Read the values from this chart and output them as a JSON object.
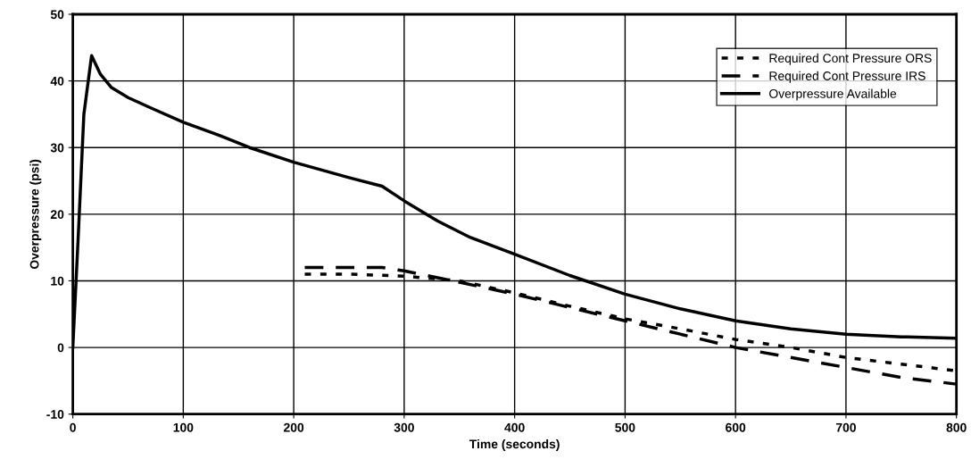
{
  "chart_data": {
    "type": "line",
    "xlabel": "Time (seconds)",
    "ylabel": "Overpressure (psi)",
    "xlim": [
      0,
      800
    ],
    "xticks": [
      0,
      100,
      200,
      300,
      400,
      500,
      600,
      700,
      800
    ],
    "ylim": [
      -10,
      50
    ],
    "yticks": [
      -10,
      0,
      10,
      20,
      30,
      40,
      50
    ],
    "grid": true,
    "legend": "top right",
    "series": [
      {
        "name": "Required Cont Pressure ORS",
        "color": "#000000",
        "line_style": "dotted",
        "x": [
          210,
          250,
          300,
          350,
          400,
          450,
          500,
          550,
          600,
          650,
          700,
          750,
          800
        ],
        "values": [
          11,
          11,
          10.7,
          10,
          8.2,
          6.2,
          4.3,
          2.8,
          1.2,
          0,
          -1.5,
          -2.5,
          -3.5
        ]
      },
      {
        "name": "Required Cont Pressure IRS",
        "color": "#000000",
        "line_style": "dashed",
        "x": [
          210,
          280,
          300,
          350,
          400,
          450,
          500,
          550,
          600,
          650,
          700,
          750,
          800
        ],
        "values": [
          12,
          12,
          11.5,
          9.8,
          8,
          6,
          4,
          2,
          0,
          -1.5,
          -3,
          -4.5,
          -5.5
        ]
      },
      {
        "name": "Overpressure Available",
        "color": "#000000",
        "line_style": "solid",
        "x": [
          0,
          5,
          10,
          17,
          25,
          35,
          50,
          70,
          100,
          130,
          160,
          200,
          250,
          280,
          300,
          330,
          360,
          400,
          450,
          500,
          550,
          600,
          650,
          700,
          750,
          800
        ],
        "values": [
          0,
          17,
          35,
          43.8,
          41,
          39,
          37.5,
          36,
          33.8,
          32,
          30,
          27.8,
          25.5,
          24.2,
          22,
          19,
          16.5,
          14,
          10.8,
          8,
          5.8,
          4,
          2.8,
          2,
          1.6,
          1.4
        ]
      }
    ]
  }
}
